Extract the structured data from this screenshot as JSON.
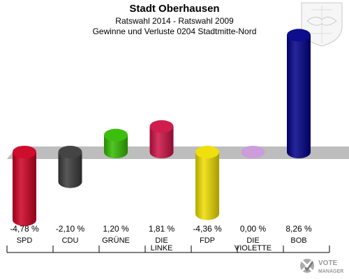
{
  "header": {
    "title": "Stadt Oberhausen",
    "subtitle": "Ratswahl 2014 - Ratswahl 2009",
    "subtitle2": "Gewinne und Verluste 0204 Stadtmitte-Nord"
  },
  "logo": {
    "line1": "VOTE",
    "line2": "MANAGER"
  },
  "chart_data": {
    "type": "bar",
    "categories": [
      "SPD",
      "CDU",
      "GRÜNE",
      "DIE LINKE",
      "FDP",
      "DIE VIOLETTE",
      "BOB"
    ],
    "category_lines": [
      [
        "SPD"
      ],
      [
        "CDU"
      ],
      [
        "GRÜNE"
      ],
      [
        "DIE",
        "LINKE"
      ],
      [
        "FDP"
      ],
      [
        "DIE",
        "VIOLETTE"
      ],
      [
        "BOB"
      ]
    ],
    "values": [
      -4.78,
      -2.1,
      1.2,
      1.81,
      -4.36,
      0.0,
      8.26
    ],
    "value_labels": [
      "-4,78 %",
      "-2,10 %",
      "1,20 %",
      "1,81 %",
      "-4,36 %",
      "0,00 %",
      "8,26 %"
    ],
    "colors": [
      "#cc0022",
      "#3a3a3a",
      "#33bb00",
      "#cc1144",
      "#eedd00",
      "#cc99dd",
      "#000088"
    ],
    "title": "Stadt Oberhausen",
    "ylim": [
      -4.78,
      8.26
    ],
    "grid": false,
    "legend": "none"
  }
}
